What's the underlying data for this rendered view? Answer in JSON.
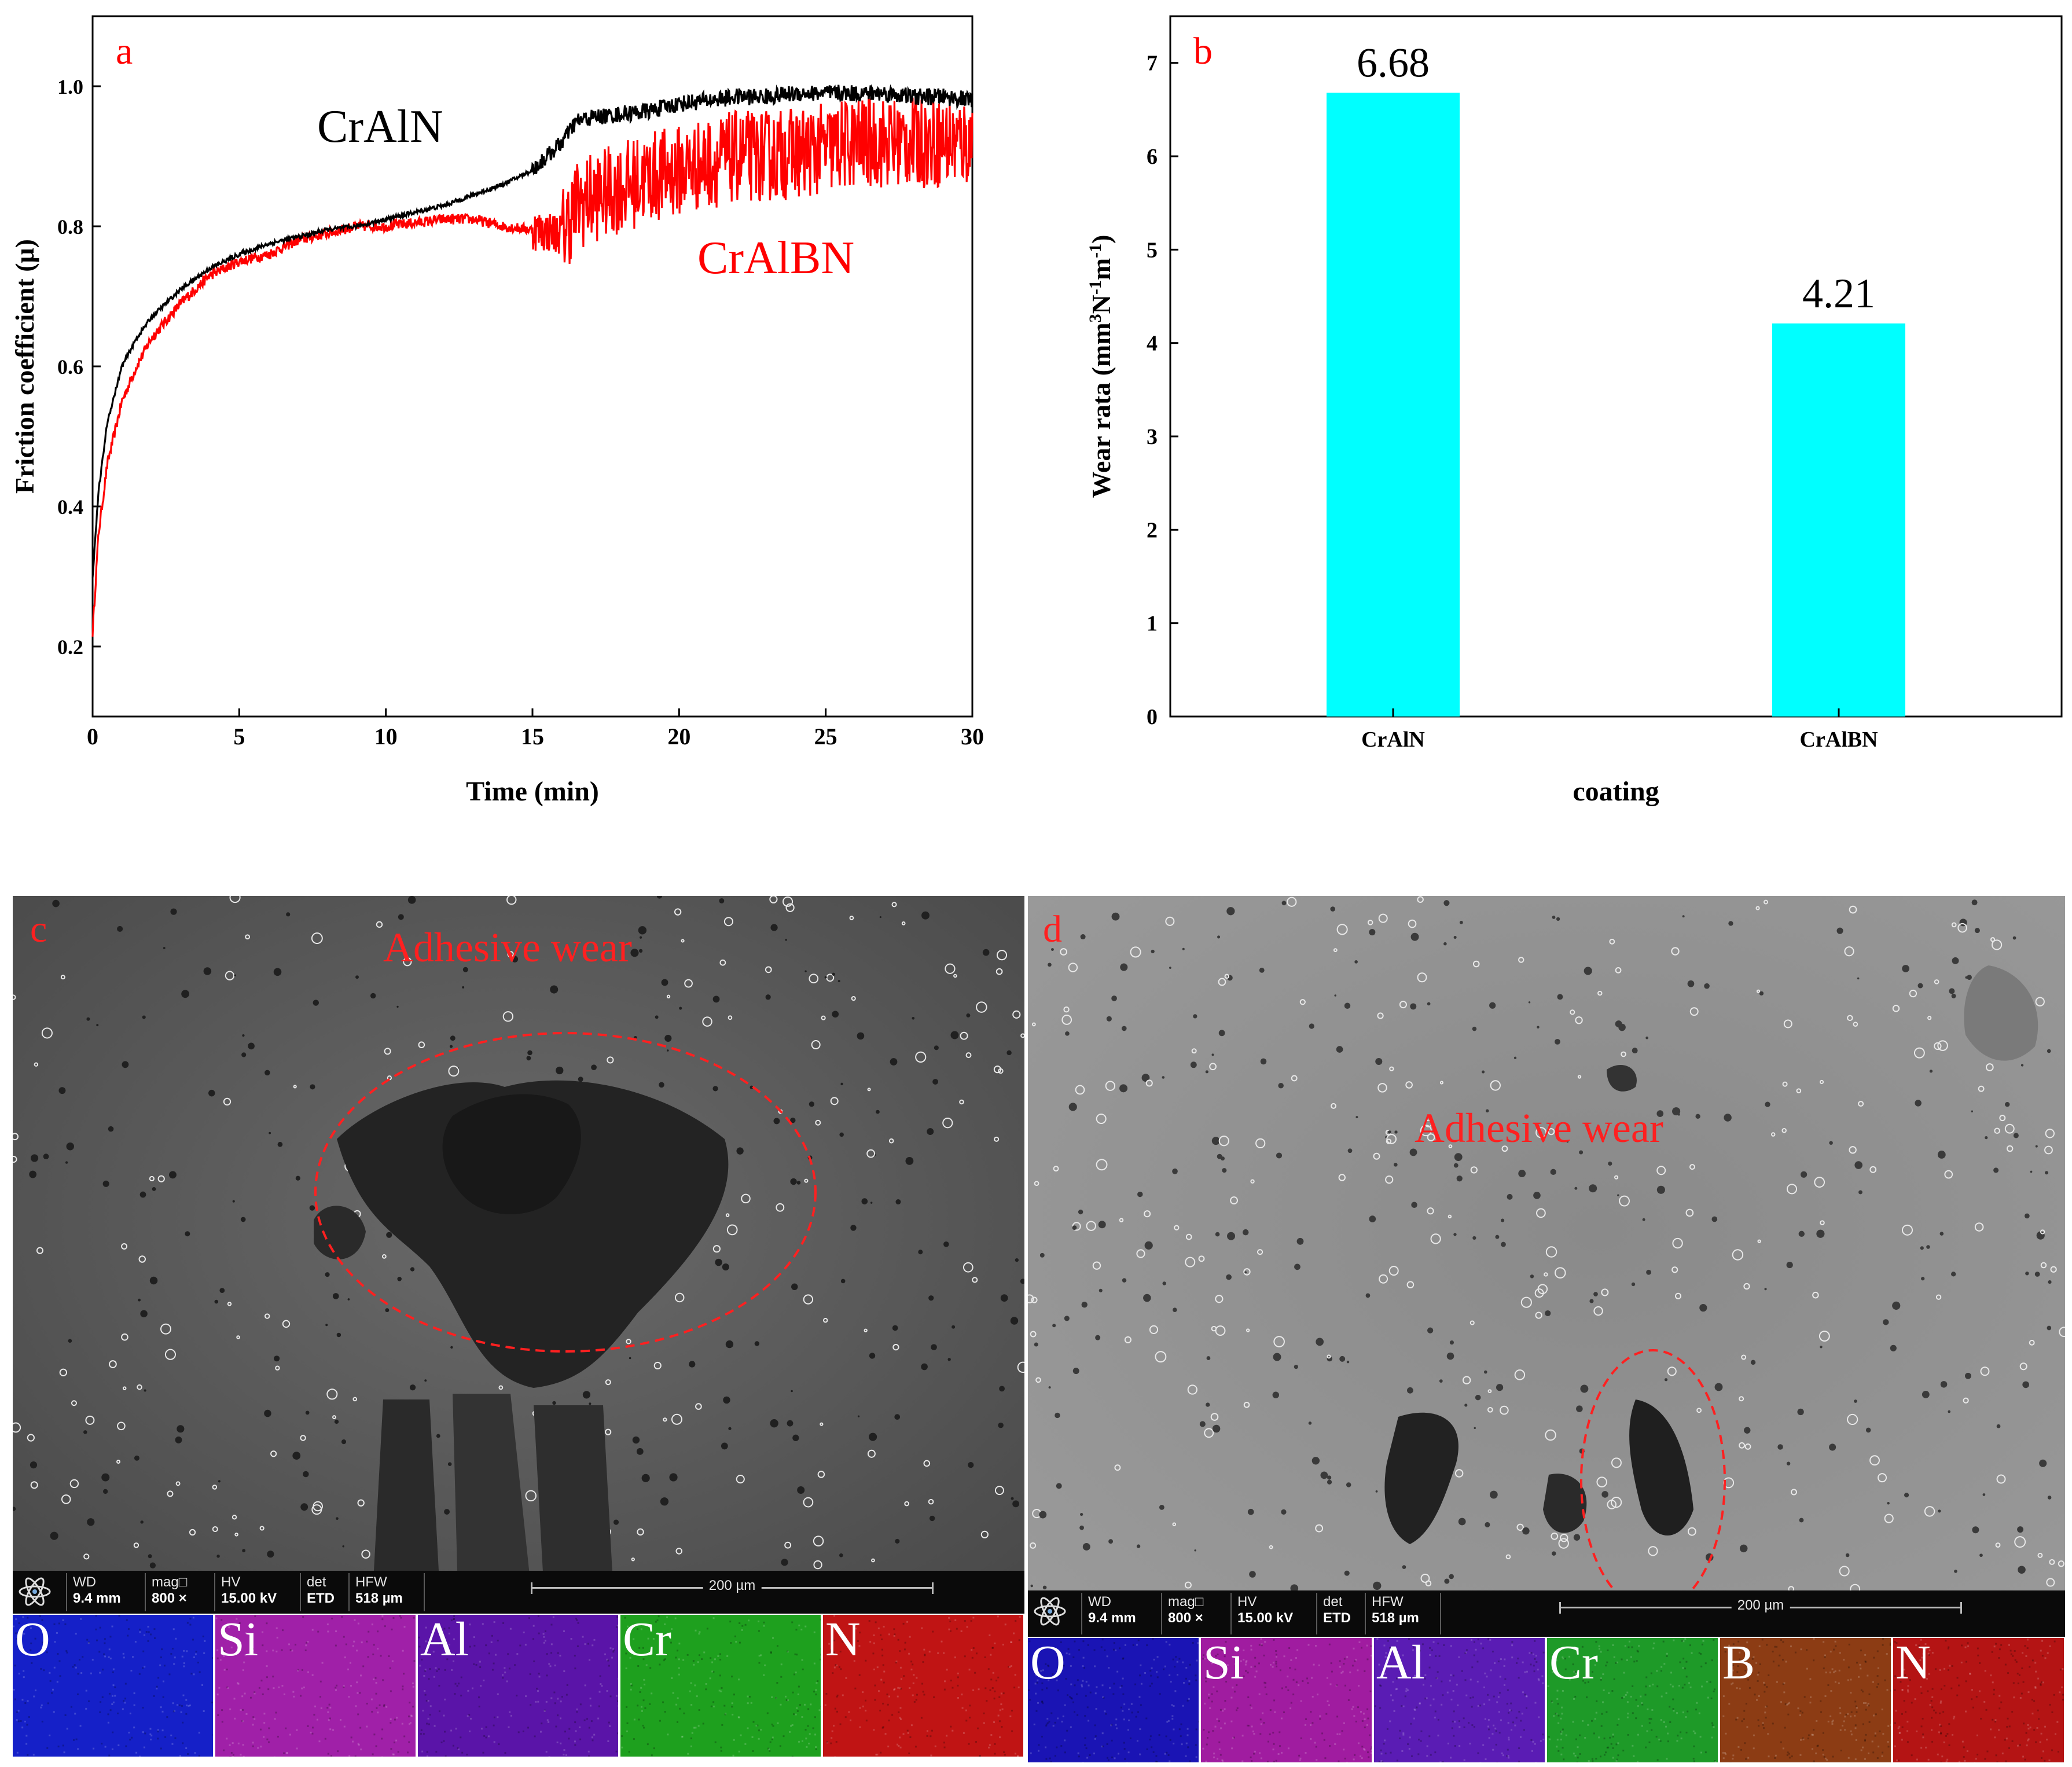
{
  "chart_data": [
    {
      "type": "line",
      "panel": "a",
      "xlabel": "Time (min)",
      "ylabel": "Friction coefficient (μ)",
      "xlim": [
        0,
        30
      ],
      "ylim": [
        0.1,
        1.1
      ],
      "xticks": [
        "0",
        "5",
        "10",
        "15",
        "20",
        "25",
        "30"
      ],
      "yticks": [
        "0.2",
        "0.4",
        "0.6",
        "0.8",
        "1.0"
      ],
      "series": [
        {
          "name": "CrAlN",
          "color": "#000000",
          "x": [
            0,
            0.2,
            0.5,
            1,
            1.5,
            2,
            3,
            4,
            5,
            6,
            7,
            8,
            9,
            10,
            11,
            12,
            13,
            14,
            15,
            15.5,
            16,
            16.5,
            17,
            18,
            19,
            20,
            21,
            22,
            23,
            24,
            25,
            26,
            27,
            28,
            29,
            30
          ],
          "y": [
            0.3,
            0.42,
            0.52,
            0.6,
            0.64,
            0.67,
            0.71,
            0.74,
            0.76,
            0.775,
            0.785,
            0.795,
            0.8,
            0.81,
            0.82,
            0.83,
            0.845,
            0.86,
            0.88,
            0.9,
            0.92,
            0.95,
            0.955,
            0.96,
            0.965,
            0.975,
            0.98,
            0.985,
            0.985,
            0.99,
            0.99,
            0.99,
            0.99,
            0.985,
            0.985,
            0.98
          ],
          "noise": 0.012
        },
        {
          "name": "CrAlBN",
          "color": "#ff0000",
          "x": [
            0,
            0.2,
            0.5,
            1,
            1.5,
            2,
            3,
            4,
            5,
            6,
            7,
            8,
            9,
            10,
            11,
            12,
            13,
            14,
            15,
            16,
            16.5,
            17,
            18,
            19,
            20,
            21,
            22,
            23,
            24,
            25,
            26,
            27,
            28,
            29,
            30
          ],
          "y": [
            0.22,
            0.36,
            0.46,
            0.55,
            0.6,
            0.64,
            0.69,
            0.73,
            0.75,
            0.76,
            0.78,
            0.79,
            0.8,
            0.8,
            0.805,
            0.81,
            0.81,
            0.8,
            0.795,
            0.79,
            0.83,
            0.84,
            0.855,
            0.87,
            0.88,
            0.89,
            0.9,
            0.9,
            0.905,
            0.91,
            0.92,
            0.92,
            0.92,
            0.92,
            0.92
          ],
          "noise": 0.03
        }
      ],
      "annotations": [
        "CrAlN",
        "CrAlBN"
      ]
    },
    {
      "type": "bar",
      "panel": "b",
      "xlabel": "coating",
      "ylabel": "Wear rata (mm3N-1m-1)",
      "ylabel_parts": {
        "a": "Wear rata (mm",
        "s1": "3",
        "b": "N",
        "s2": "-1",
        "c": "m",
        "s3": "-1",
        "d": ")"
      },
      "categories": [
        "CrAlN",
        "CrAlBN"
      ],
      "values": [
        6.68,
        4.21
      ],
      "value_labels": [
        "6.68",
        "4.21"
      ],
      "ylim": [
        0,
        7.5
      ],
      "yticks": [
        "0",
        "1",
        "2",
        "3",
        "4",
        "5",
        "6",
        "7"
      ],
      "color": "#00ffff"
    }
  ],
  "panels": {
    "a": "a",
    "b": "b",
    "c": "c",
    "d": "d"
  },
  "sem_c": {
    "annotation": "Adhesive wear",
    "info": {
      "wd_label": "WD",
      "wd_value": "9.4 mm",
      "mag_label": "mag□",
      "mag_value": "800 ×",
      "hv_label": "HV",
      "hv_value": "15.00 kV",
      "det_label": "det",
      "det_value": "ETD",
      "hfw_label": "HFW",
      "hfw_value": "518 µm",
      "scale": "200 µm"
    },
    "eds": [
      "O",
      "Si",
      "Al",
      "Cr",
      "N"
    ],
    "eds_colors": [
      "#1520c8",
      "#a020a8",
      "#5a14a8",
      "#1ea01e",
      "#c01414"
    ]
  },
  "sem_d": {
    "annotation": "Adhesive wear",
    "info": {
      "wd_label": "WD",
      "wd_value": "9.4 mm",
      "mag_label": "mag□",
      "mag_value": "800 ×",
      "hv_label": "HV",
      "hv_value": "15.00 kV",
      "det_label": "det",
      "det_value": "ETD",
      "hfw_label": "HFW",
      "hfw_value": "518 µm",
      "scale": "200 µm"
    },
    "eds": [
      "O",
      "Si",
      "Al",
      "Cr",
      "B",
      "N"
    ],
    "eds_colors": [
      "#1a14b4",
      "#a01ca0",
      "#5a1cb4",
      "#1e9a28",
      "#8c3c14",
      "#b41414"
    ]
  }
}
